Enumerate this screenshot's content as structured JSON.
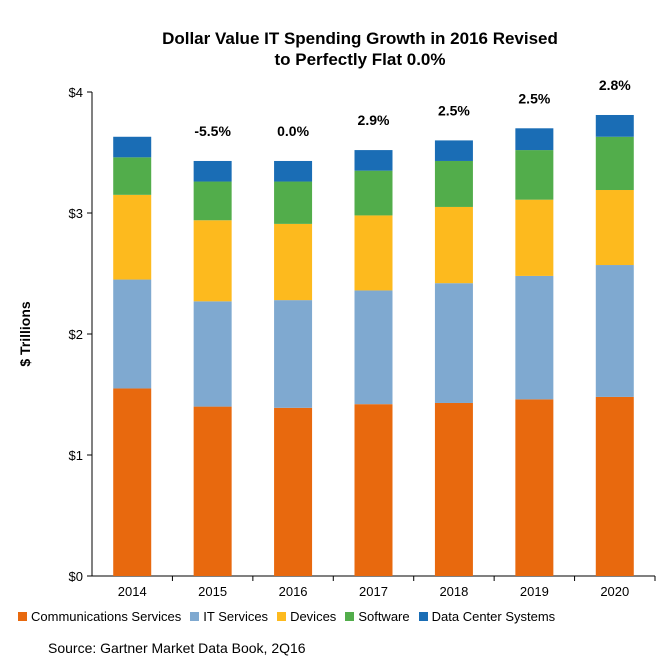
{
  "chart_data": {
    "type": "bar",
    "stacked": true,
    "title_lines": [
      "Dollar Value IT Spending Growth in 2016 Revised",
      "to Perfectly Flat 0.0%"
    ],
    "ylabel": "$ Trillions",
    "xlabel": "",
    "ylim": [
      0,
      4
    ],
    "yticks": [
      0,
      1,
      2,
      3,
      4
    ],
    "ytick_labels": [
      "$0",
      "$1",
      "$2",
      "$3",
      "$4"
    ],
    "categories": [
      "2014",
      "2015",
      "2016",
      "2017",
      "2018",
      "2019",
      "2020"
    ],
    "growth_labels": [
      "",
      "-5.5%",
      "0.0%",
      "2.9%",
      "2.5%",
      "2.5%",
      "2.8%"
    ],
    "series": [
      {
        "name": "Communications Services",
        "color": "#E8690E",
        "values": [
          1.55,
          1.4,
          1.39,
          1.42,
          1.43,
          1.46,
          1.48
        ]
      },
      {
        "name": "IT Services",
        "color": "#7FA9D0",
        "values": [
          0.9,
          0.87,
          0.89,
          0.94,
          0.99,
          1.02,
          1.09
        ]
      },
      {
        "name": "Devices",
        "color": "#FDBA1E",
        "values": [
          0.7,
          0.67,
          0.63,
          0.62,
          0.63,
          0.63,
          0.62
        ]
      },
      {
        "name": "Software",
        "color": "#52AD4B",
        "values": [
          0.31,
          0.32,
          0.35,
          0.37,
          0.38,
          0.41,
          0.44
        ]
      },
      {
        "name": "Data Center Systems",
        "color": "#1A6DB5",
        "values": [
          0.17,
          0.17,
          0.17,
          0.17,
          0.17,
          0.18,
          0.18
        ]
      }
    ],
    "grid": false,
    "legend_position": "bottom"
  },
  "source": "Source: Gartner Market Data Book, 2Q16"
}
